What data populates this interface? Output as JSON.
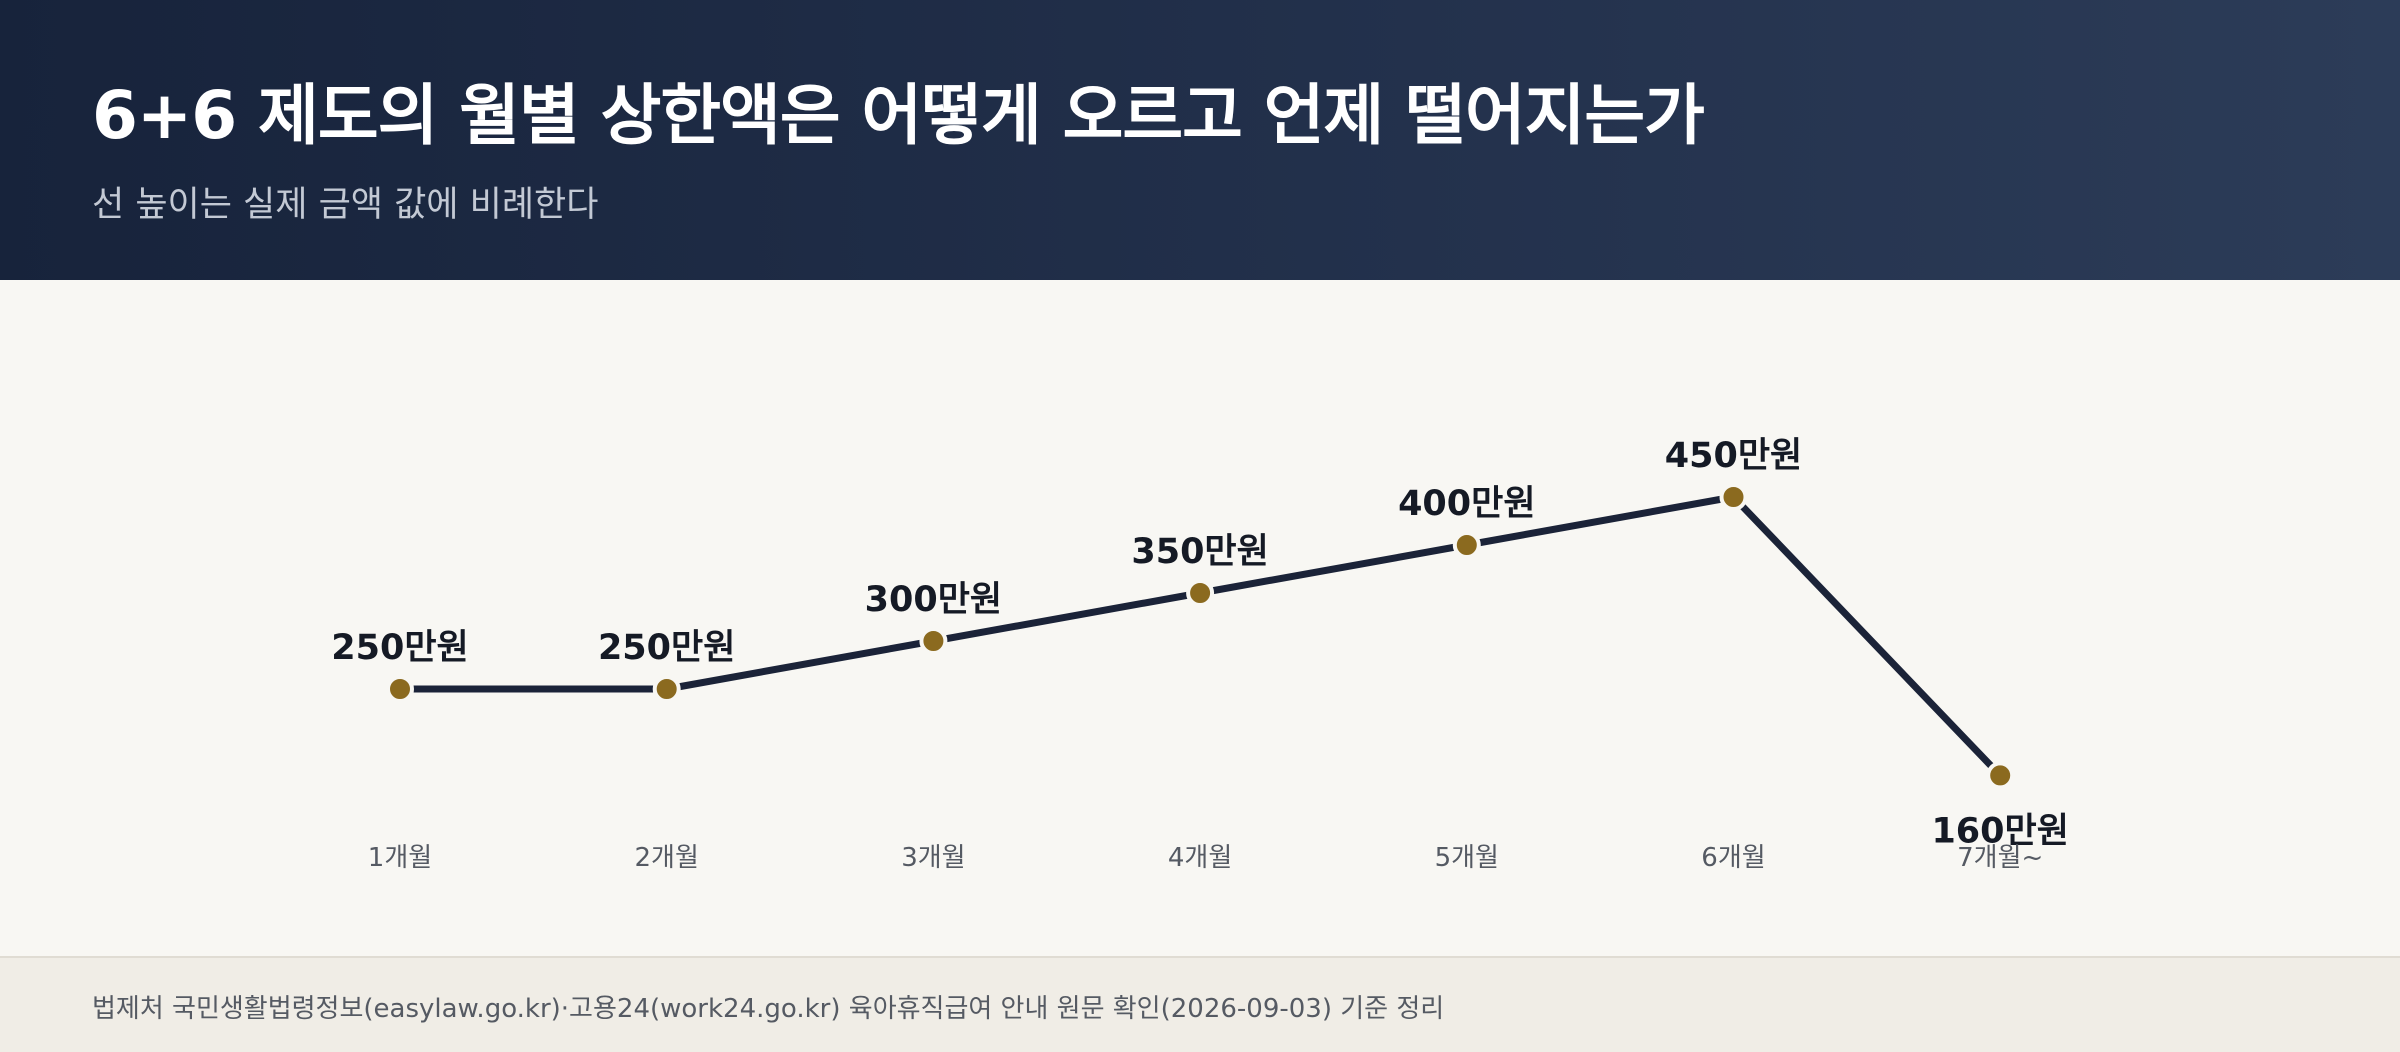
{
  "header": {
    "title": "6+6 제도의 월별 상한액은 어떻게 오르고 언제 떨어지는가",
    "subtitle": "선 높이는 실제 금액 값에 비례한다"
  },
  "footer": {
    "source": "법제처 국민생활법령정보(easylaw.go.kr)·고용24(work24.go.kr) 육아휴직급여 안내 원문 확인(2026-09-03) 기준 정리"
  },
  "chart_data": {
    "type": "line",
    "categories": [
      "1개월",
      "2개월",
      "3개월",
      "4개월",
      "5개월",
      "6개월",
      "7개월~"
    ],
    "values": [
      250,
      250,
      300,
      350,
      400,
      450,
      160
    ],
    "data_labels": [
      "250만원",
      "250만원",
      "300만원",
      "350만원",
      "400만원",
      "450만원",
      "160만원"
    ],
    "unit": "만원",
    "ylim": [
      0,
      500
    ],
    "grid": false,
    "legend": "none",
    "line_color": "#1b2338",
    "marker_color": "#8b6a1f",
    "label_color": "#151a25",
    "tick_color": "#555a63"
  }
}
